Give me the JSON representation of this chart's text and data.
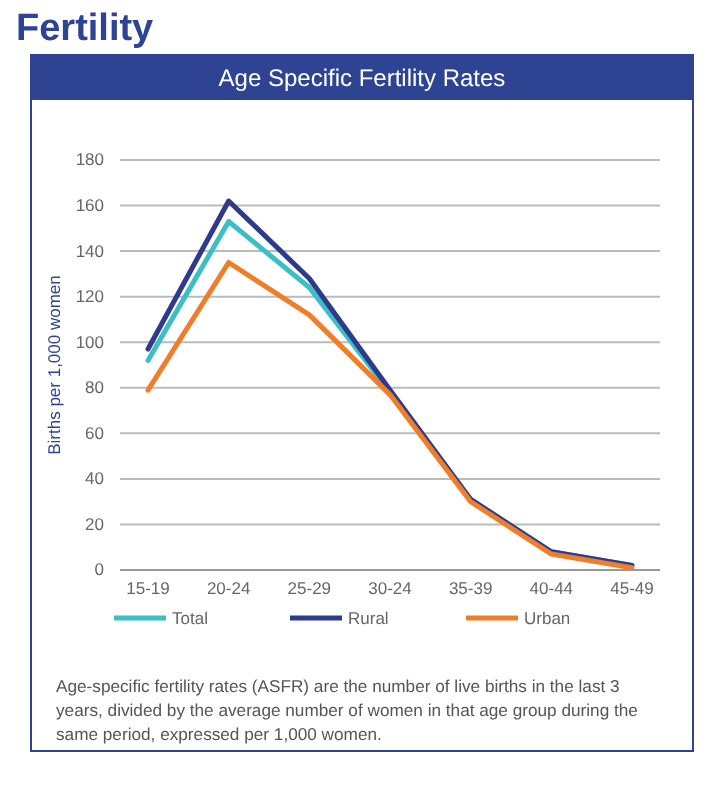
{
  "chart_data": {
    "type": "line",
    "title": "Fertility",
    "subtitle": "Age Specific Fertility Rates",
    "ylabel": "Births per 1,000 women",
    "categories": [
      "15-19",
      "20-24",
      "25-29",
      "30-24",
      "35-39",
      "40-44",
      "45-49"
    ],
    "series": [
      {
        "name": "Total",
        "color": "#3bbfc5",
        "values": [
          92,
          153,
          124,
          78,
          31,
          8,
          2
        ]
      },
      {
        "name": "Rural",
        "color": "#2e3a8c",
        "values": [
          97,
          162,
          128,
          79,
          31,
          8,
          2
        ]
      },
      {
        "name": "Urban",
        "color": "#f07d2a",
        "values": [
          79,
          135,
          112,
          77,
          30,
          7,
          1
        ]
      }
    ],
    "ylim": [
      0,
      180
    ],
    "yticks": [
      0,
      20,
      40,
      60,
      80,
      100,
      120,
      140,
      160,
      180
    ],
    "grid": "y",
    "legend": "bottom",
    "marker": "none",
    "line_style": "solid",
    "annotations": [
      "Age-specific fertility rates (ASFR) are the number of live births in the last 3 years, divided by the average number of women in that age group during the same period, expressed per 1,000 women."
    ]
  }
}
